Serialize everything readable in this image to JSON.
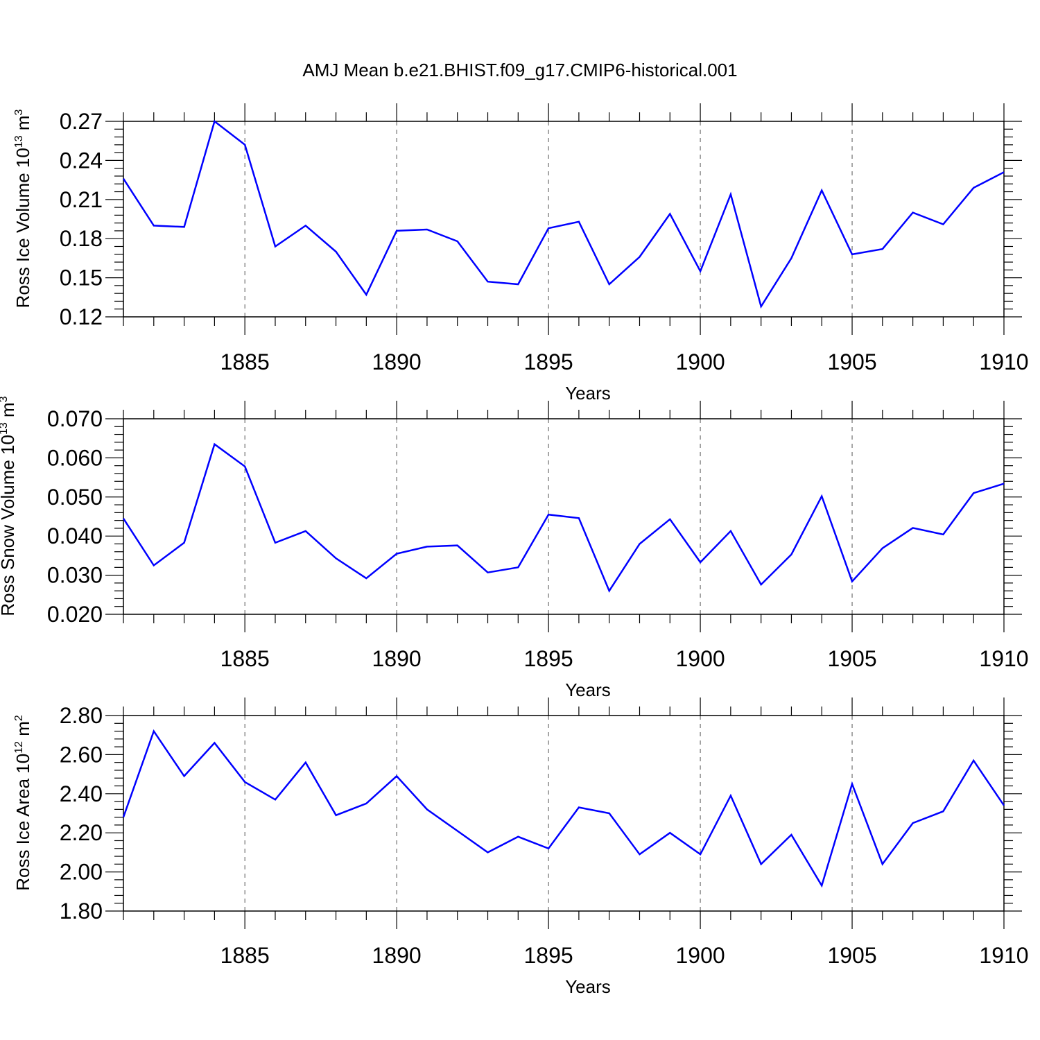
{
  "title": "AMJ Mean b.e21.BHIST.f09_g17.CMIP6-historical.001",
  "style": {
    "line_color": "#0000ff",
    "grid": "dashed vertical at major x ticks"
  },
  "chart_data": [
    {
      "type": "line",
      "xlabel": "Years",
      "ylabel": {
        "main": "Ross Ice Volume 10",
        "exp": "13",
        "unit": " m",
        "unit_exp": "3"
      },
      "xlim": [
        1881,
        1910
      ],
      "ylim": [
        0.12,
        0.27
      ],
      "xticks": [
        1885,
        1890,
        1895,
        1900,
        1905,
        1910
      ],
      "xtick_labels": [
        "1885",
        "1890",
        "1895",
        "1900",
        "1905",
        "1910"
      ],
      "yticks": [
        0.12,
        0.15,
        0.18,
        0.21,
        0.24,
        0.27
      ],
      "ytick_labels": [
        "0.12",
        "0.15",
        "0.18",
        "0.21",
        "0.24",
        "0.27"
      ],
      "x": [
        1881,
        1882,
        1883,
        1884,
        1885,
        1886,
        1887,
        1888,
        1889,
        1890,
        1891,
        1892,
        1893,
        1894,
        1895,
        1896,
        1897,
        1898,
        1899,
        1900,
        1901,
        1902,
        1903,
        1904,
        1905,
        1906,
        1907,
        1908,
        1909,
        1910
      ],
      "values": [
        0.226,
        0.19,
        0.189,
        0.27,
        0.252,
        0.174,
        0.19,
        0.17,
        0.137,
        0.186,
        0.187,
        0.178,
        0.147,
        0.145,
        0.188,
        0.193,
        0.145,
        0.166,
        0.199,
        0.155,
        0.214,
        0.128,
        0.165,
        0.217,
        0.168,
        0.172,
        0.2,
        0.191,
        0.219,
        0.231
      ]
    },
    {
      "type": "line",
      "xlabel": "Years",
      "ylabel": {
        "main": "Ross Snow Volume 10",
        "exp": "13",
        "unit": " m",
        "unit_exp": "3"
      },
      "xlim": [
        1881,
        1910
      ],
      "ylim": [
        0.02,
        0.07
      ],
      "xticks": [
        1885,
        1890,
        1895,
        1900,
        1905,
        1910
      ],
      "xtick_labels": [
        "1885",
        "1890",
        "1895",
        "1900",
        "1905",
        "1910"
      ],
      "yticks": [
        0.02,
        0.03,
        0.04,
        0.05,
        0.06,
        0.07
      ],
      "ytick_labels": [
        "0.020",
        "0.030",
        "0.040",
        "0.050",
        "0.060",
        "0.070"
      ],
      "x": [
        1881,
        1882,
        1883,
        1884,
        1885,
        1886,
        1887,
        1888,
        1889,
        1890,
        1891,
        1892,
        1893,
        1894,
        1895,
        1896,
        1897,
        1898,
        1899,
        1900,
        1901,
        1902,
        1903,
        1904,
        1905,
        1906,
        1907,
        1908,
        1909,
        1910
      ],
      "values": [
        0.0445,
        0.0325,
        0.0383,
        0.0635,
        0.0578,
        0.0383,
        0.0413,
        0.0343,
        0.0292,
        0.0355,
        0.0373,
        0.0376,
        0.0307,
        0.032,
        0.0455,
        0.0446,
        0.026,
        0.038,
        0.0443,
        0.0333,
        0.0413,
        0.0276,
        0.0353,
        0.0502,
        0.0284,
        0.0369,
        0.0421,
        0.0404,
        0.051,
        0.0534
      ]
    },
    {
      "type": "line",
      "xlabel": "Years",
      "ylabel": {
        "main": "Ross Ice Area 10",
        "exp": "12",
        "unit": " m",
        "unit_exp": "2"
      },
      "xlim": [
        1881,
        1910
      ],
      "ylim": [
        1.8,
        2.8
      ],
      "xticks": [
        1885,
        1890,
        1895,
        1900,
        1905,
        1910
      ],
      "xtick_labels": [
        "1885",
        "1890",
        "1895",
        "1900",
        "1905",
        "1910"
      ],
      "yticks": [
        1.8,
        2.0,
        2.2,
        2.4,
        2.6,
        2.8
      ],
      "ytick_labels": [
        "1.80",
        "2.00",
        "2.20",
        "2.40",
        "2.60",
        "2.80"
      ],
      "x": [
        1881,
        1882,
        1883,
        1884,
        1885,
        1886,
        1887,
        1888,
        1889,
        1890,
        1891,
        1892,
        1893,
        1894,
        1895,
        1896,
        1897,
        1898,
        1899,
        1900,
        1901,
        1902,
        1903,
        1904,
        1905,
        1906,
        1907,
        1908,
        1909,
        1910
      ],
      "values": [
        2.28,
        2.72,
        2.49,
        2.66,
        2.46,
        2.37,
        2.56,
        2.29,
        2.35,
        2.49,
        2.32,
        2.21,
        2.1,
        2.18,
        2.12,
        2.33,
        2.3,
        2.09,
        2.2,
        2.09,
        2.39,
        2.04,
        2.19,
        1.93,
        2.45,
        2.04,
        2.25,
        2.31,
        2.57,
        2.34
      ]
    }
  ]
}
